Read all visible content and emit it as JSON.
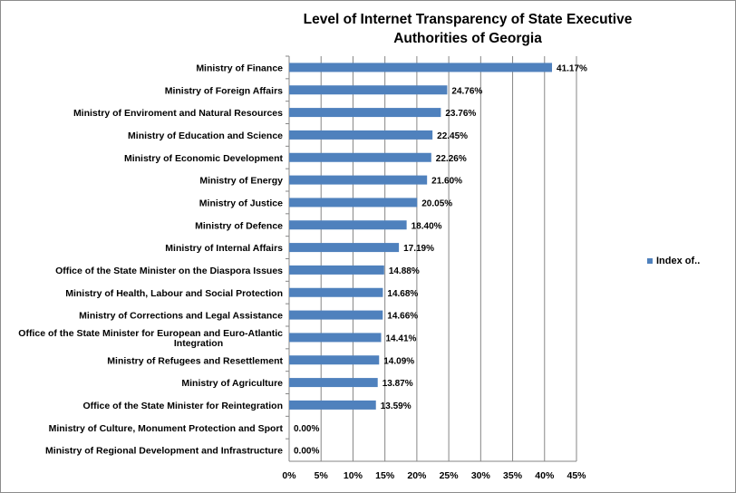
{
  "chart_data": {
    "type": "bar",
    "orientation": "horizontal",
    "title": "Level of Internet Transparency  of State Executive\nAuthorities of Georgia",
    "categories": [
      "Ministry of Finance",
      "Ministry of Foreign Affairs",
      "Ministry of Enviroment and Natural Resources",
      "Ministry of Education and Science",
      "Ministry of Economic Development",
      "Ministry of Energy",
      "Ministry of Justice",
      "Ministry of Defence",
      "Ministry of Internal Affairs",
      "Office of the State Minister on the Diaspora Issues",
      "Ministry of Health, Labour and Social Protection",
      "Ministry of Corrections and Legal Assistance",
      "Office of the State Minister for European and Euro-Atlantic\nIntegration",
      "Ministry of Refugees and Resettlement",
      "Ministry of Agriculture",
      "Office of the State Minister for Reintegration",
      "Ministry of Culture, Monument Protection and Sport",
      "Ministry of Regional Development and Infrastructure"
    ],
    "series": [
      {
        "name": "Index of..",
        "values": [
          41.17,
          24.76,
          23.76,
          22.45,
          22.26,
          21.6,
          20.05,
          18.4,
          17.19,
          14.88,
          14.68,
          14.66,
          14.41,
          14.09,
          13.87,
          13.59,
          0.0,
          0.0
        ],
        "labels": [
          "41.17%",
          "24.76%",
          "23.76%",
          "22.45%",
          "22.26%",
          "21.60%",
          "20.05%",
          "18.40%",
          "17.19%",
          "14.88%",
          "14.68%",
          "14.66%",
          "14.41%",
          "14.09%",
          "13.87%",
          "13.59%",
          "0.00%",
          "0.00%"
        ]
      }
    ],
    "xlim": [
      0,
      45
    ],
    "xticks": [
      "0%",
      "5%",
      "10%",
      "15%",
      "20%",
      "25%",
      "30%",
      "35%",
      "40%",
      "45%"
    ],
    "grid": "vertical",
    "legend_position": "right",
    "bar_color": "#4f81bd"
  }
}
